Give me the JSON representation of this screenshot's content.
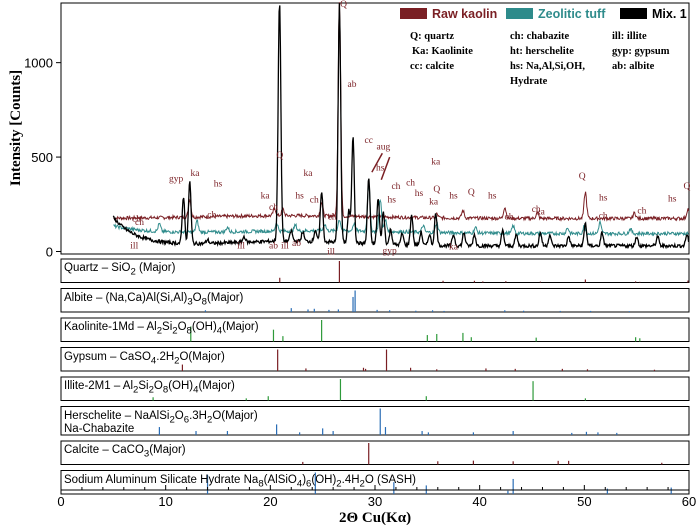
{
  "chart_data": {
    "type": "line",
    "xlabel": "2Θ Cu(Kα)",
    "ylabel": "Intensity [Counts]",
    "xlim": [
      0,
      60
    ],
    "ylim": [
      0,
      1300
    ],
    "x_ticks": [
      0,
      10,
      20,
      30,
      40,
      50,
      60
    ],
    "y_ticks": [
      0,
      500,
      1000
    ],
    "legend_position": "top-right",
    "series": [
      {
        "name": "Raw kaolin",
        "color": "#7a1f24",
        "baseline": 175
      },
      {
        "name": "Zeolitic tuff",
        "color": "#2e8b8b",
        "baseline": 95
      },
      {
        "name": "Mix. 1",
        "color": "#000000",
        "baseline": 30
      }
    ],
    "peaks": {
      "kaolin": [
        [
          12.3,
          95
        ],
        [
          20.4,
          40
        ],
        [
          21.2,
          35
        ],
        [
          24.9,
          70
        ],
        [
          26.6,
          1140
        ],
        [
          35.9,
          20
        ],
        [
          38.4,
          40
        ],
        [
          42.4,
          60
        ],
        [
          45.5,
          30
        ],
        [
          50.1,
          140
        ],
        [
          54.8,
          30
        ],
        [
          59.9,
          50
        ]
      ],
      "tuff": [
        [
          9.4,
          40
        ],
        [
          13.0,
          60
        ],
        [
          15.9,
          25
        ],
        [
          20.6,
          45
        ],
        [
          22.4,
          30
        ],
        [
          25.2,
          35
        ],
        [
          26.6,
          60
        ],
        [
          28.0,
          40
        ],
        [
          29.4,
          250
        ],
        [
          30.5,
          170
        ],
        [
          31.0,
          60
        ],
        [
          34.6,
          35
        ],
        [
          35.9,
          50
        ],
        [
          39.6,
          30
        ],
        [
          43.2,
          40
        ],
        [
          48.4,
          30
        ],
        [
          50.0,
          40
        ],
        [
          51.5,
          60
        ],
        [
          54.4,
          25
        ]
      ],
      "mix": [
        [
          11.7,
          250
        ],
        [
          12.3,
          330
        ],
        [
          14.0,
          20
        ],
        [
          17.5,
          30
        ],
        [
          20.8,
          360
        ],
        [
          20.9,
          1000
        ],
        [
          22.0,
          55
        ],
        [
          23.1,
          50
        ],
        [
          24.3,
          60
        ],
        [
          24.9,
          270
        ],
        [
          26.6,
          1270
        ],
        [
          27.5,
          170
        ],
        [
          27.9,
          570
        ],
        [
          29.4,
          350
        ],
        [
          30.3,
          240
        ],
        [
          30.8,
          170
        ],
        [
          31.5,
          80
        ],
        [
          32.6,
          60
        ],
        [
          33.5,
          160
        ],
        [
          34.4,
          70
        ],
        [
          35.2,
          60
        ],
        [
          35.8,
          170
        ],
        [
          37.5,
          60
        ],
        [
          38.5,
          70
        ],
        [
          39.5,
          60
        ],
        [
          42.2,
          80
        ],
        [
          43.5,
          60
        ],
        [
          45.8,
          70
        ],
        [
          46.7,
          60
        ],
        [
          48.5,
          50
        ],
        [
          50.1,
          120
        ],
        [
          51.7,
          70
        ],
        [
          55.0,
          50
        ],
        [
          57.0,
          50
        ],
        [
          59.8,
          60
        ]
      ]
    },
    "peak_labels": [
      {
        "text": "Q",
        "x": 27.0,
        "y": 1295,
        "color": "#7a1f24"
      },
      {
        "text": "ab",
        "x": 27.8,
        "y": 870,
        "color": "#7a1f24"
      },
      {
        "text": "Q",
        "x": 20.9,
        "y": 495,
        "color": "#7a1f24"
      },
      {
        "text": "cc",
        "x": 29.4,
        "y": 575,
        "color": "#7a1f24"
      },
      {
        "text": "aug",
        "x": 30.8,
        "y": 540,
        "color": "#7a1f24"
      },
      {
        "text": "ka",
        "x": 12.8,
        "y": 400,
        "color": "#7a1f24"
      },
      {
        "text": "gyp",
        "x": 11.0,
        "y": 370,
        "color": "#7a1f24"
      },
      {
        "text": "hs",
        "x": 15.0,
        "y": 345,
        "color": "#7a1f24"
      },
      {
        "text": "ka",
        "x": 19.5,
        "y": 280,
        "color": "#7a1f24"
      },
      {
        "text": "ka",
        "x": 23.6,
        "y": 400,
        "color": "#7a1f24"
      },
      {
        "text": "hs",
        "x": 22.8,
        "y": 280,
        "color": "#7a1f24"
      },
      {
        "text": "ch",
        "x": 24.2,
        "y": 260,
        "color": "#7a1f24"
      },
      {
        "text": "ch",
        "x": 20.3,
        "y": 220,
        "color": "#7a1f24"
      },
      {
        "text": "hs",
        "x": 30.5,
        "y": 430,
        "color": "#7a1f24"
      },
      {
        "text": "ka",
        "x": 35.8,
        "y": 460,
        "color": "#7a1f24"
      },
      {
        "text": "ch",
        "x": 32.0,
        "y": 330,
        "color": "#7a1f24"
      },
      {
        "text": "ch",
        "x": 33.4,
        "y": 350,
        "color": "#7a1f24"
      },
      {
        "text": "hs",
        "x": 31.6,
        "y": 260,
        "color": "#7a1f24"
      },
      {
        "text": "hs",
        "x": 34.2,
        "y": 295,
        "color": "#7a1f24"
      },
      {
        "text": "Q",
        "x": 35.9,
        "y": 315,
        "color": "#7a1f24"
      },
      {
        "text": "ka",
        "x": 35.6,
        "y": 250,
        "color": "#7a1f24"
      },
      {
        "text": "hs",
        "x": 37.5,
        "y": 280,
        "color": "#7a1f24"
      },
      {
        "text": "Q",
        "x": 39.2,
        "y": 300,
        "color": "#7a1f24"
      },
      {
        "text": "hs",
        "x": 41.2,
        "y": 280,
        "color": "#7a1f24"
      },
      {
        "text": "Q",
        "x": 49.8,
        "y": 385,
        "color": "#7a1f24"
      },
      {
        "text": "hs",
        "x": 51.8,
        "y": 270,
        "color": "#7a1f24"
      },
      {
        "text": "hs",
        "x": 58.4,
        "y": 265,
        "color": "#7a1f24"
      },
      {
        "text": "Q",
        "x": 59.8,
        "y": 330,
        "color": "#7a1f24"
      },
      {
        "text": "ch",
        "x": 7.2,
        "y": 160,
        "color": "#7a1f24"
      },
      {
        "text": "ch",
        "x": 7.5,
        "y": 140,
        "color": "#7a1f24"
      },
      {
        "text": "ch",
        "x": 14.4,
        "y": 180,
        "color": "#7a1f24"
      },
      {
        "text": "ch",
        "x": 25.9,
        "y": 170,
        "color": "#7a1f24"
      },
      {
        "text": "ch",
        "x": 42.8,
        "y": 170,
        "color": "#7a1f24"
      },
      {
        "text": "ch",
        "x": 45.4,
        "y": 210,
        "color": "#7a1f24"
      },
      {
        "text": "ka",
        "x": 45.8,
        "y": 195,
        "color": "#7a1f24"
      },
      {
        "text": "ch",
        "x": 51.8,
        "y": 175,
        "color": "#7a1f24"
      },
      {
        "text": "ch",
        "x": 55.5,
        "y": 200,
        "color": "#7a1f24"
      },
      {
        "text": "ill",
        "x": 7.0,
        "y": 15,
        "color": "#7a1f24"
      },
      {
        "text": "ill",
        "x": 17.2,
        "y": 15,
        "color": "#7a1f24"
      },
      {
        "text": "ab",
        "x": 20.3,
        "y": 15,
        "color": "#7a1f24"
      },
      {
        "text": "ill",
        "x": 21.4,
        "y": 15,
        "color": "#7a1f24"
      },
      {
        "text": "ab",
        "x": 22.5,
        "y": 30,
        "color": "#7a1f24"
      },
      {
        "text": "ill",
        "x": 25.8,
        "y": -15,
        "color": "#7a1f24"
      },
      {
        "text": "gyp",
        "x": 31.4,
        "y": -10,
        "color": "#7a1f24"
      },
      {
        "text": "ka",
        "x": 37.5,
        "y": 10,
        "color": "#7a1f24"
      }
    ],
    "legend_key": {
      "col1": [
        "Q: quartz",
        "Ka: Kaolinite",
        "cc: calcite"
      ],
      "col2": [
        "ch: chabazite",
        "ht: herschelite",
        "hs: Na,Al,Si,OH,",
        "Hydrate"
      ],
      "col3": [
        "ill: illite",
        "gyp: gypsum",
        "ab: albite"
      ]
    },
    "reference_patterns": [
      {
        "label_html": "Quartz – SiO<sub>2</sub> (Major)",
        "color": "#7a1f24",
        "sticks": [
          [
            20.9,
            22
          ],
          [
            26.6,
            100
          ],
          [
            36.5,
            8
          ],
          [
            39.5,
            8
          ],
          [
            40.3,
            5
          ],
          [
            42.5,
            6
          ],
          [
            45.8,
            4
          ],
          [
            50.1,
            14
          ],
          [
            54.9,
            5
          ],
          [
            55.3,
            3
          ],
          [
            59.9,
            9
          ]
        ]
      },
      {
        "label_html": "Albite – (Na,Ca)Al(Si,Al)<sub>3</sub>O<sub>8</sub>(Major)",
        "color": "#2a6db5",
        "sticks": [
          [
            13.8,
            8
          ],
          [
            22.0,
            18
          ],
          [
            23.6,
            12
          ],
          [
            24.2,
            15
          ],
          [
            25.6,
            10
          ],
          [
            26.5,
            12
          ],
          [
            27.9,
            70
          ],
          [
            28.1,
            100
          ],
          [
            30.2,
            10
          ],
          [
            31.4,
            8
          ],
          [
            33.9,
            6
          ],
          [
            35.5,
            8
          ],
          [
            36.6,
            5
          ],
          [
            42.4,
            8
          ],
          [
            44.2,
            6
          ],
          [
            47.7,
            5
          ],
          [
            50.6,
            5
          ],
          [
            54.3,
            4
          ]
        ]
      },
      {
        "label_html": "Kaolinite-1Md – Al<sub>2</sub>Si<sub>2</sub>O<sub>8</sub>(OH)<sub>4</sub>(Major)",
        "color": "#2e9a3a",
        "sticks": [
          [
            12.4,
            70
          ],
          [
            20.3,
            55
          ],
          [
            21.2,
            25
          ],
          [
            24.9,
            100
          ],
          [
            35.0,
            30
          ],
          [
            35.9,
            35
          ],
          [
            38.4,
            40
          ],
          [
            39.2,
            20
          ],
          [
            45.4,
            18
          ],
          [
            54.9,
            20
          ],
          [
            55.3,
            15
          ]
        ]
      },
      {
        "label_html": "Gypsum – CaSO<sub>4</sub>.2H<sub>2</sub>O(Major)",
        "color": "#7a1f24",
        "sticks": [
          [
            11.6,
            30
          ],
          [
            20.7,
            100
          ],
          [
            23.4,
            12
          ],
          [
            28.9,
            15
          ],
          [
            29.1,
            10
          ],
          [
            31.1,
            100
          ],
          [
            33.4,
            15
          ],
          [
            35.9,
            8
          ],
          [
            40.6,
            12
          ],
          [
            43.4,
            10
          ],
          [
            47.9,
            10
          ],
          [
            50.3,
            8
          ],
          [
            56.7,
            6
          ]
        ]
      },
      {
        "label_html": "Illite-2M1 – Al<sub>2</sub>Si<sub>2</sub>O<sub>8</sub>(OH)<sub>4</sub>(Major)",
        "color": "#2e9a3a",
        "sticks": [
          [
            8.8,
            15
          ],
          [
            17.7,
            10
          ],
          [
            19.8,
            20
          ],
          [
            26.7,
            100
          ],
          [
            34.9,
            20
          ],
          [
            45.1,
            90
          ],
          [
            50.1,
            10
          ]
        ]
      },
      {
        "label_html": "Herschelite – NaAlSi<sub>2</sub>O<sub>6</sub>.3H<sub>2</sub>O(Major)",
        "color": "#2a6db5",
        "sticks": [
          [
            9.4,
            30
          ],
          [
            12.9,
            15
          ],
          [
            15.9,
            15
          ],
          [
            20.6,
            40
          ],
          [
            22.8,
            10
          ],
          [
            25.0,
            25
          ],
          [
            26.0,
            15
          ],
          [
            30.5,
            100
          ],
          [
            31.0,
            30
          ],
          [
            34.5,
            15
          ],
          [
            35.1,
            10
          ],
          [
            39.4,
            10
          ],
          [
            43.2,
            15
          ],
          [
            48.8,
            8
          ],
          [
            50.2,
            12
          ],
          [
            51.3,
            10
          ],
          [
            53.1,
            8
          ]
        ]
      },
      {
        "label_html": "Calcite – CaCO<sub>3</sub>(Major)",
        "color": "#7a1f24",
        "sticks": [
          [
            23.1,
            12
          ],
          [
            29.4,
            100
          ],
          [
            36.0,
            15
          ],
          [
            39.4,
            18
          ],
          [
            43.2,
            15
          ],
          [
            47.5,
            17
          ],
          [
            48.5,
            17
          ],
          [
            57.4,
            8
          ]
        ]
      },
      {
        "label_html": "Sodium Aluminum Silicate Hydrate Na<sub>8</sub>(AlSiO<sub>4</sub>)<sub>6</sub>(OH)<sub>2</sub>.4H<sub>2</sub>O (SASH)",
        "color": "#2a6db5",
        "sticks": [
          [
            14.0,
            90
          ],
          [
            24.3,
            100
          ],
          [
            31.8,
            55
          ],
          [
            34.9,
            40
          ],
          [
            42.7,
            15
          ],
          [
            43.2,
            70
          ],
          [
            52.2,
            25
          ],
          [
            58.3,
            30
          ]
        ]
      }
    ],
    "extra_label": "Na-Chabazite"
  }
}
